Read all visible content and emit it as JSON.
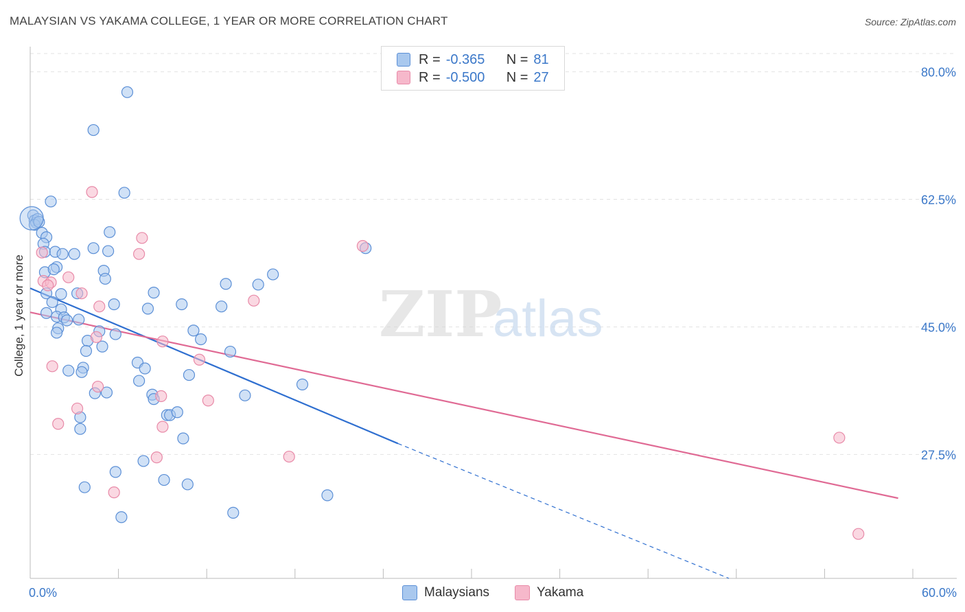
{
  "title": "MALAYSIAN VS YAKAMA COLLEGE, 1 YEAR OR MORE CORRELATION CHART",
  "source": "Source: ZipAtlas.com",
  "watermark": {
    "zip": "ZIP",
    "atlas": "atlas"
  },
  "legend_top": {
    "rows": [
      {
        "r_label": "R =",
        "r_value": "-0.365",
        "n_label": "N =",
        "n_value": "81"
      },
      {
        "r_label": "R =",
        "r_value": "-0.500",
        "n_label": "N =",
        "n_value": "27"
      }
    ]
  },
  "legend_bottom": {
    "series1": "Malaysians",
    "series2": "Yakama"
  },
  "colors": {
    "malaysian_fill": "#a9c8ee",
    "malaysian_stroke": "#5b8fd6",
    "malaysian_line": "#2f6fd0",
    "yakama_fill": "#f6b8cb",
    "yakama_stroke": "#e88aa8",
    "yakama_line": "#e06a94",
    "tick_label": "#3b78c9",
    "grid": "#e2e2e2"
  },
  "chart_data": {
    "type": "scatter",
    "title": "MALAYSIAN VS YAKAMA COLLEGE, 1 YEAR OR MORE CORRELATION CHART",
    "xlabel": "",
    "ylabel": "College, 1 year or more",
    "xlim": [
      0,
      60
    ],
    "ylim": [
      10.5,
      82.5
    ],
    "x_tick_labels": [
      {
        "value": 0,
        "label": "0.0%"
      },
      {
        "value": 60,
        "label": "60.0%"
      }
    ],
    "x_minor_ticks": [
      6,
      12,
      18,
      24,
      30,
      36,
      42,
      48,
      54,
      60
    ],
    "y_ticks": [
      {
        "value": 80,
        "label": "80.0%"
      },
      {
        "value": 62.5,
        "label": "62.5%"
      },
      {
        "value": 45,
        "label": "45.0%"
      },
      {
        "value": 27.5,
        "label": "27.5%"
      }
    ],
    "series": [
      {
        "name": "Malaysians",
        "r": -0.365,
        "n": 81,
        "trend": {
          "x0": 0,
          "y0": 50.3,
          "x1": 25,
          "y1": 29.0,
          "dash_to_x": 47.5,
          "dash_to_y": 10.5
        },
        "points": [
          [
            0.2,
            60.3
          ],
          [
            0.3,
            59.6
          ],
          [
            0.4,
            59.3
          ],
          [
            0.5,
            59.8
          ],
          [
            0.3,
            59.0
          ],
          [
            0.6,
            59.4
          ],
          [
            1.4,
            62.2
          ],
          [
            0.8,
            57.9
          ],
          [
            1.1,
            57.3
          ],
          [
            0.9,
            56.4
          ],
          [
            1.0,
            55.3
          ],
          [
            1.7,
            55.3
          ],
          [
            2.2,
            55.0
          ],
          [
            3.0,
            55.0
          ],
          [
            4.3,
            55.8
          ],
          [
            5.3,
            55.4
          ],
          [
            5.4,
            58.0
          ],
          [
            6.4,
            63.4
          ],
          [
            6.6,
            77.2
          ],
          [
            4.3,
            72.0
          ],
          [
            1.8,
            53.2
          ],
          [
            1.0,
            52.5
          ],
          [
            1.6,
            52.9
          ],
          [
            5.0,
            52.7
          ],
          [
            5.1,
            51.6
          ],
          [
            1.1,
            49.6
          ],
          [
            1.5,
            48.4
          ],
          [
            2.1,
            49.5
          ],
          [
            2.1,
            47.4
          ],
          [
            1.1,
            46.9
          ],
          [
            1.8,
            46.4
          ],
          [
            3.2,
            49.6
          ],
          [
            5.7,
            48.1
          ],
          [
            2.3,
            46.3
          ],
          [
            3.3,
            46.0
          ],
          [
            2.5,
            45.9
          ],
          [
            1.9,
            44.8
          ],
          [
            1.8,
            44.2
          ],
          [
            4.7,
            44.4
          ],
          [
            5.8,
            44.0
          ],
          [
            3.9,
            43.1
          ],
          [
            4.9,
            42.3
          ],
          [
            3.8,
            41.7
          ],
          [
            8.4,
            49.7
          ],
          [
            8.0,
            47.5
          ],
          [
            10.3,
            48.1
          ],
          [
            13.3,
            50.9
          ],
          [
            15.5,
            50.8
          ],
          [
            16.5,
            52.2
          ],
          [
            13.0,
            47.8
          ],
          [
            11.1,
            44.5
          ],
          [
            11.6,
            43.3
          ],
          [
            13.6,
            41.6
          ],
          [
            2.6,
            39.0
          ],
          [
            3.6,
            39.4
          ],
          [
            3.5,
            38.8
          ],
          [
            7.3,
            40.1
          ],
          [
            7.8,
            39.3
          ],
          [
            10.8,
            38.4
          ],
          [
            7.4,
            37.6
          ],
          [
            18.5,
            37.1
          ],
          [
            4.4,
            35.9
          ],
          [
            5.2,
            36.0
          ],
          [
            8.3,
            35.7
          ],
          [
            8.4,
            35.1
          ],
          [
            14.6,
            35.6
          ],
          [
            9.3,
            32.9
          ],
          [
            9.5,
            32.9
          ],
          [
            10.0,
            33.3
          ],
          [
            3.4,
            32.6
          ],
          [
            3.4,
            31.0
          ],
          [
            10.4,
            29.7
          ],
          [
            7.7,
            26.6
          ],
          [
            5.8,
            25.1
          ],
          [
            9.1,
            24.0
          ],
          [
            3.7,
            23.0
          ],
          [
            10.7,
            23.4
          ],
          [
            20.2,
            21.9
          ],
          [
            6.2,
            18.9
          ],
          [
            13.8,
            19.5
          ],
          [
            22.8,
            55.8
          ]
        ]
      },
      {
        "name": "Yakama",
        "r": -0.5,
        "n": 27,
        "trend": {
          "x0": 0,
          "y0": 47.0,
          "x1": 59,
          "y1": 21.5
        },
        "points": [
          [
            4.2,
            63.5
          ],
          [
            7.6,
            57.2
          ],
          [
            7.4,
            55.0
          ],
          [
            22.6,
            56.1
          ],
          [
            0.8,
            55.2
          ],
          [
            0.9,
            51.3
          ],
          [
            1.4,
            51.1
          ],
          [
            1.2,
            50.7
          ],
          [
            2.6,
            51.8
          ],
          [
            3.5,
            49.6
          ],
          [
            4.7,
            47.8
          ],
          [
            15.2,
            48.6
          ],
          [
            4.5,
            43.6
          ],
          [
            9.0,
            43.0
          ],
          [
            11.5,
            40.5
          ],
          [
            1.5,
            39.6
          ],
          [
            4.6,
            36.8
          ],
          [
            12.1,
            34.9
          ],
          [
            3.2,
            33.8
          ],
          [
            1.9,
            31.7
          ],
          [
            9.0,
            31.3
          ],
          [
            8.6,
            27.1
          ],
          [
            17.6,
            27.2
          ],
          [
            5.7,
            22.3
          ],
          [
            55.0,
            29.8
          ],
          [
            56.3,
            16.6
          ],
          [
            8.9,
            35.5
          ]
        ]
      }
    ]
  }
}
